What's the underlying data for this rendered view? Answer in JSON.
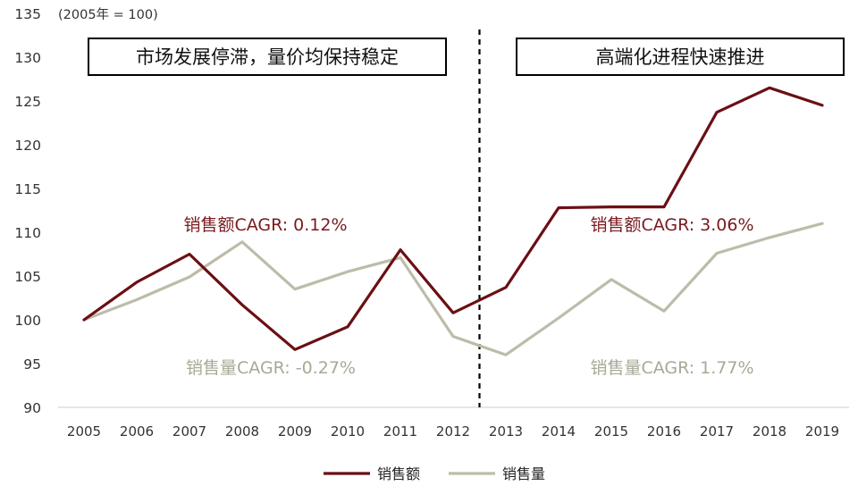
{
  "chart_data": {
    "type": "line",
    "title": "",
    "unit_note": "(2005年 = 100)",
    "xlabel": "",
    "ylabel": "",
    "categories": [
      "2005",
      "2006",
      "2007",
      "2008",
      "2009",
      "2010",
      "2011",
      "2012",
      "2013",
      "2014",
      "2015",
      "2016",
      "2017",
      "2018",
      "2019"
    ],
    "ylim": [
      90,
      135
    ],
    "yticks": [
      90,
      95,
      100,
      105,
      110,
      115,
      120,
      125,
      130,
      135
    ],
    "grid": false,
    "divider_after_category": "2012",
    "series": [
      {
        "name": "销售额",
        "color": "#6b0f14",
        "values": [
          100.0,
          104.3,
          107.5,
          101.7,
          96.6,
          99.2,
          108.0,
          100.8,
          103.7,
          112.8,
          112.9,
          112.9,
          123.7,
          126.5,
          124.5
        ]
      },
      {
        "name": "销售量",
        "color": "#bdbcaa",
        "values": [
          100.0,
          102.3,
          104.9,
          108.9,
          103.5,
          105.5,
          107.1,
          98.1,
          96.0,
          100.2,
          104.6,
          101.0,
          107.6,
          109.4,
          111.0
        ]
      }
    ],
    "annotations": [
      {
        "id": "box-left",
        "text": "市场发展停滞，量价均保持稳定",
        "style": "boxed"
      },
      {
        "id": "box-right",
        "text": "高端化进程快速推进",
        "style": "boxed"
      },
      {
        "id": "cagr-sales-left",
        "text": "销售额CAGR: 0.12%",
        "color": "#7a1a1f"
      },
      {
        "id": "cagr-volume-left",
        "text": "销售量CAGR: -0.27%",
        "color": "#a9a897"
      },
      {
        "id": "cagr-sales-right",
        "text": "销售额CAGR: 3.06%",
        "color": "#7a1a1f"
      },
      {
        "id": "cagr-volume-right",
        "text": "销售量CAGR: 1.77%",
        "color": "#a9a897"
      }
    ],
    "legend": {
      "placement": "bottom-center",
      "entries": [
        "销售额",
        "销售量"
      ]
    }
  }
}
